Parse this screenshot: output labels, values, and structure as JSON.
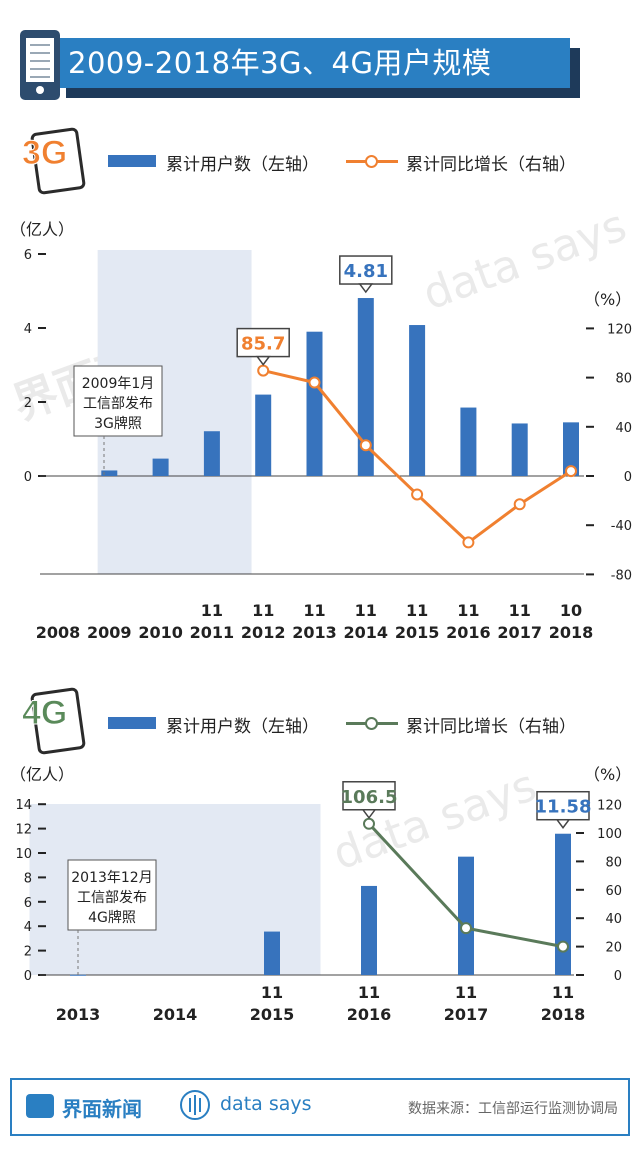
{
  "page": {
    "title": "2009-2018年3G、4G用户规模",
    "footer": {
      "brand1": "界面新闻",
      "brand2": "data says",
      "source": "数据来源：工信部运行监测协调局"
    },
    "watermark1": "界面新闻",
    "watermark2": "data says"
  },
  "colors": {
    "bar": "#3773bd",
    "line3g": "#f08030",
    "line4g": "#5a7a5a",
    "highlight": "#e3e9f3",
    "title_bg": "#2a7fc2"
  },
  "chart_data": [
    {
      "type": "bar+line",
      "name": "3G",
      "icon_label": "3G",
      "legend_bar": "累计用户数（左轴）",
      "legend_line": "累计同比增长（右轴）",
      "ylabel_left": "（亿人）",
      "ylabel_right": "（%）",
      "y_left_ticks": [
        0,
        2,
        4,
        6
      ],
      "y_left_range": [
        -2.7,
        6
      ],
      "y_right_ticks": [
        -80,
        -40,
        0,
        40,
        80,
        120
      ],
      "y_right_range": [
        -80,
        120
      ],
      "x_labels": [
        {
          "month": "",
          "year": "2008"
        },
        {
          "month": "",
          "year": "2009"
        },
        {
          "month": "",
          "year": "2010"
        },
        {
          "month": "11",
          "year": "2011"
        },
        {
          "month": "11",
          "year": "2012"
        },
        {
          "month": "11",
          "year": "2013"
        },
        {
          "month": "11",
          "year": "2014"
        },
        {
          "month": "11",
          "year": "2015"
        },
        {
          "month": "11",
          "year": "2016"
        },
        {
          "month": "11",
          "year": "2017"
        },
        {
          "month": "10",
          "year": "2018"
        }
      ],
      "bar_values": [
        null,
        0.15,
        0.47,
        1.21,
        2.2,
        3.9,
        4.81,
        4.08,
        1.85,
        1.42,
        1.45
      ],
      "line_values": [
        null,
        null,
        null,
        null,
        85.7,
        76,
        25,
        -15,
        -54,
        -23,
        4
      ],
      "highlight_range": [
        "2009",
        "2012"
      ],
      "annotation": "2009年1月\n工信部发布\n3G牌照",
      "callouts": [
        {
          "text": "85.7",
          "series": "line",
          "index": 4
        },
        {
          "text": "4.81",
          "series": "bar",
          "index": 6
        }
      ]
    },
    {
      "type": "bar+line",
      "name": "4G",
      "icon_label": "4G",
      "legend_bar": "累计用户数（左轴）",
      "legend_line": "累计同比增长（右轴）",
      "ylabel_left": "（亿人）",
      "ylabel_right": "（%）",
      "y_left_ticks": [
        0,
        2,
        4,
        6,
        8,
        10,
        12,
        14
      ],
      "y_left_range": [
        0,
        14
      ],
      "y_right_ticks": [
        0,
        20,
        40,
        60,
        80,
        100,
        120
      ],
      "y_right_range": [
        0,
        120
      ],
      "x_labels": [
        {
          "month": "",
          "year": "2013"
        },
        {
          "month": "",
          "year": "2014"
        },
        {
          "month": "11",
          "year": "2015"
        },
        {
          "month": "11",
          "year": "2016"
        },
        {
          "month": "11",
          "year": "2017"
        },
        {
          "month": "11",
          "year": "2018"
        }
      ],
      "bar_values": [
        0.02,
        null,
        3.56,
        7.3,
        9.7,
        11.58
      ],
      "line_values": [
        null,
        null,
        null,
        106.5,
        33,
        20
      ],
      "highlight_range": [
        "2013",
        "2016"
      ],
      "annotation": "2013年12月\n工信部发布\n4G牌照",
      "callouts": [
        {
          "text": "106.5",
          "series": "line",
          "index": 3
        },
        {
          "text": "11.58",
          "series": "bar",
          "index": 5
        }
      ]
    }
  ]
}
